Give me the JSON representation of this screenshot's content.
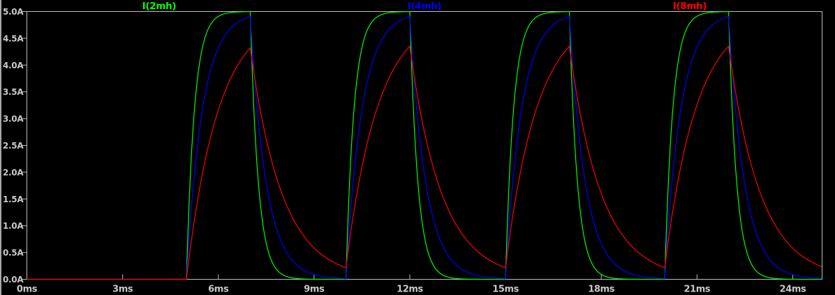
{
  "window": {
    "background": "#000000",
    "left_frame_color": "#A8A8A8"
  },
  "chart_data": {
    "type": "line",
    "title": "",
    "grid": false,
    "axis_color": "#BEBEBE",
    "text_color": "#C8C8C8",
    "legend_position": "top, one label centered over each third of the plot",
    "x_axis": {
      "unit": "ms",
      "tick_labels": [
        "0ms",
        "3ms",
        "6ms",
        "9ms",
        "12ms",
        "15ms",
        "18ms",
        "21ms",
        "24ms"
      ],
      "tick_values_ms": [
        0,
        3,
        6,
        9,
        12,
        15,
        18,
        21,
        24
      ],
      "range_ms": [
        0,
        24.92
      ]
    },
    "y_axis": {
      "unit": "A",
      "tick_labels": [
        "5.0A",
        "4.5A",
        "4.0A",
        "3.5A",
        "3.0A",
        "2.5A",
        "2.0A",
        "1.5A",
        "1.0A",
        "0.5A",
        "0.0A"
      ],
      "tick_values_A": [
        5.0,
        4.5,
        4.0,
        3.5,
        3.0,
        2.5,
        2.0,
        1.5,
        1.0,
        0.5,
        0.0
      ],
      "range_A": [
        0,
        5.0
      ]
    },
    "series": [
      {
        "name": "I(2mh)",
        "color": "#00FF00",
        "inductance_label": "2mh",
        "tau_ms": 0.25,
        "peak_A": 5.0,
        "valley_A": 0.0
      },
      {
        "name": "I(4mh)",
        "color": "#0000FF",
        "inductance_label": "4mh",
        "tau_ms": 0.5,
        "peak_A": 4.9,
        "valley_A": 0.0
      },
      {
        "name": "I(8mh)",
        "color": "#FF0000",
        "inductance_label": "8mh",
        "tau_ms": 1.0,
        "peak_A": 4.3,
        "valley_A": 0.2
      }
    ],
    "excitation": {
      "type": "pulse-train",
      "steady_state_current_A": 5.0,
      "initial_current_A": 0.0,
      "on_times_ms": [
        5,
        10,
        15,
        20
      ],
      "off_times_ms": [
        7,
        12,
        17,
        22
      ]
    }
  }
}
